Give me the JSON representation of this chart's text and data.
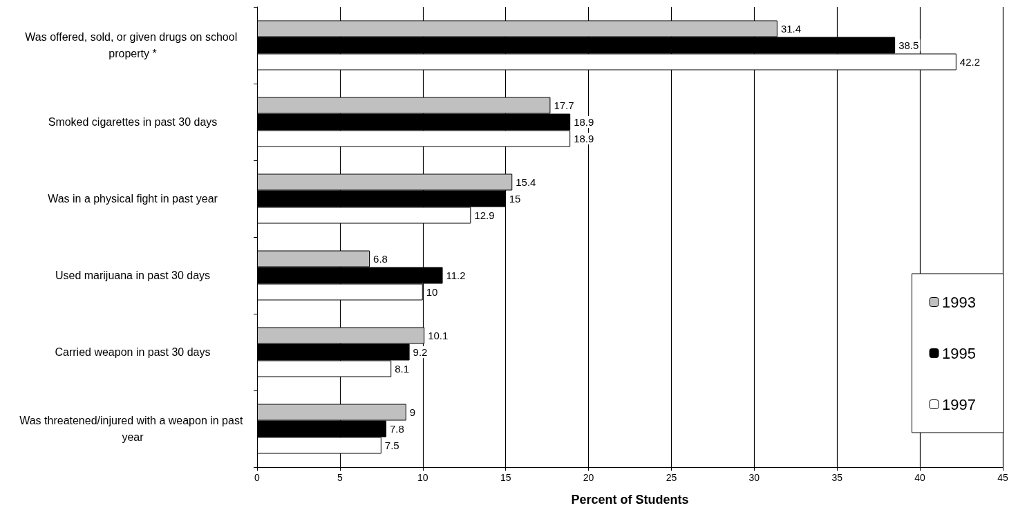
{
  "chart_data": {
    "type": "bar",
    "orientation": "horizontal",
    "xlabel": "Percent of Students",
    "categories": [
      "Was offered, sold, or given drugs on school property *",
      "Smoked cigarettes in past 30 days",
      "Was in a physical fight in past year",
      "Used marijuana in past 30 days",
      "Carried weapon in past 30 days",
      "Was threatened/injured with a weapon in past year"
    ],
    "series": [
      {
        "name": "1993",
        "color": "#c0c0c0",
        "values": [
          31.4,
          17.7,
          15.4,
          6.8,
          10.1,
          9
        ]
      },
      {
        "name": "1995",
        "color": "#000000",
        "values": [
          38.5,
          18.9,
          15,
          11.2,
          9.2,
          7.8
        ]
      },
      {
        "name": "1997",
        "color": "#ffffff",
        "values": [
          42.2,
          18.9,
          12.9,
          10,
          8.1,
          7.5
        ]
      }
    ],
    "xlim": [
      0,
      45
    ],
    "xticks": [
      0,
      5,
      10,
      15,
      20,
      25,
      30,
      35,
      40,
      45
    ],
    "grid": "x",
    "legend": "bottom right",
    "data_labels": true
  }
}
